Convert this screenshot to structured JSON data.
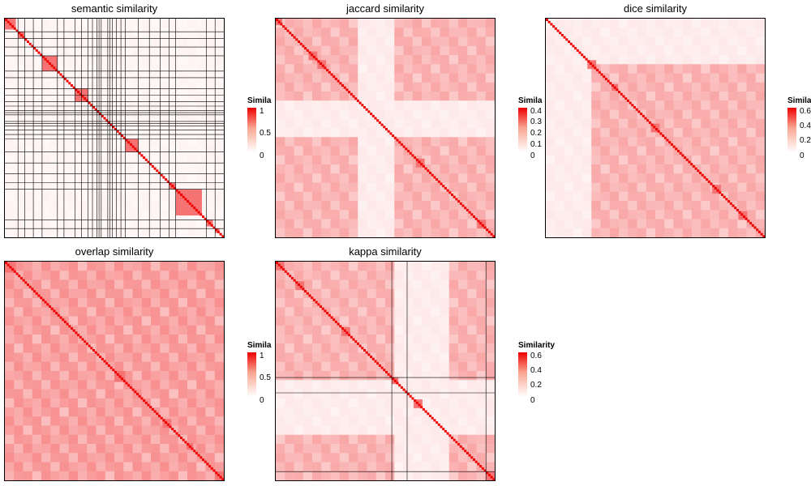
{
  "chart_data": [
    {
      "type": "heatmap",
      "title": "semantic similarity",
      "legend": {
        "title": "Similarity",
        "ticks": [
          "1",
          "0.5",
          "0"
        ],
        "range": [
          0,
          1
        ]
      },
      "n_terms": 100,
      "diagonal_value": 1,
      "diagonal_blocks": [
        [
          0,
          5
        ],
        [
          6,
          9
        ],
        [
          17,
          24
        ],
        [
          32,
          38
        ],
        [
          55,
          61
        ],
        [
          75,
          78
        ],
        [
          78,
          90
        ],
        [
          92,
          95
        ],
        [
          96,
          98
        ]
      ],
      "cluster_boundaries": [
        6,
        9,
        13,
        17,
        24,
        27,
        32,
        35,
        38,
        40,
        42,
        43,
        44,
        47,
        48,
        49,
        51,
        53,
        55,
        61,
        66,
        71,
        75,
        78,
        92,
        96
      ],
      "background_level": "low"
    },
    {
      "type": "heatmap",
      "title": "jaccard similarity",
      "legend": {
        "title": "Similarity",
        "ticks": [
          "0.4",
          "0.3",
          "0.2",
          "0.1",
          "0"
        ],
        "range": [
          0,
          0.45
        ]
      },
      "n_terms": 100,
      "diagonal_value": 0.45,
      "diagonal_blocks": [
        [
          0,
          3
        ],
        [
          15,
          19
        ],
        [
          19,
          23
        ],
        [
          64,
          68
        ],
        [
          92,
          96
        ]
      ],
      "pale_bands": [
        [
          39,
          56
        ]
      ],
      "background_level": "medium"
    },
    {
      "type": "heatmap",
      "title": "dice similarity",
      "legend": {
        "title": "Similarity",
        "ticks": [
          "0.6",
          "0.4",
          "0.2",
          "0"
        ],
        "range": [
          0,
          0.62
        ]
      },
      "n_terms": 100,
      "diagonal_value": 0.62,
      "diagonal_blocks": [
        [
          19,
          23
        ],
        [
          30,
          33
        ],
        [
          48,
          52
        ],
        [
          76,
          80
        ],
        [
          88,
          92
        ]
      ],
      "pale_bands": [
        [
          0,
          19
        ]
      ],
      "background_level": "medium"
    },
    {
      "type": "heatmap",
      "title": "overlap similarity",
      "legend": {
        "title": "Similarity",
        "ticks": [
          "1",
          "0.5",
          "0"
        ],
        "range": [
          0,
          1
        ]
      },
      "n_terms": 100,
      "diagonal_value": 1,
      "diagonal_blocks": [
        [
          0,
          5
        ],
        [
          50,
          55
        ],
        [
          72,
          76
        ],
        [
          83,
          86
        ],
        [
          96,
          100
        ]
      ],
      "background_level": "high"
    },
    {
      "type": "heatmap",
      "title": "kappa similarity",
      "legend": {
        "title": "Similarity",
        "ticks": [
          "0.6",
          "0.4",
          "0.2",
          "0"
        ],
        "range": [
          0,
          0.62
        ]
      },
      "n_terms": 100,
      "diagonal_value": 0.62,
      "diagonal_blocks": [
        [
          0,
          4
        ],
        [
          9,
          13
        ],
        [
          30,
          34
        ],
        [
          53,
          56
        ],
        [
          63,
          67
        ],
        [
          96,
          100
        ]
      ],
      "cluster_boundaries": [
        53,
        60,
        96
      ],
      "pale_bands": [
        [
          53,
          78
        ]
      ],
      "background_level": "medium"
    }
  ],
  "colors": {
    "low": "#ffffff",
    "high": "#ee0000",
    "grid_line": "#000000"
  }
}
